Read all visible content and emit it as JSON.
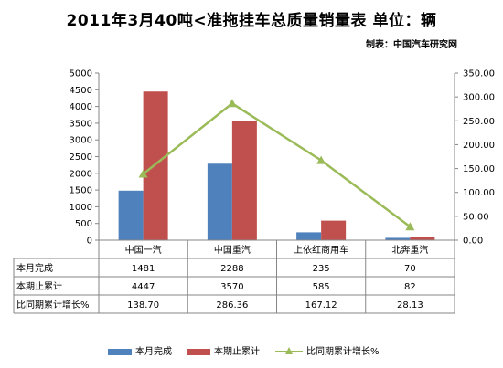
{
  "title": "2011年3月40吨<准拖挂车总质量销量表   单位：辆",
  "source": "制表：中国汽车研究网",
  "chart_data": {
    "type": "bar",
    "categories": [
      "中国一汽",
      "中国重汽",
      "上依红商用车",
      "北奔重汽"
    ],
    "series": [
      {
        "name": "本月完成",
        "type": "bar",
        "axis": "left",
        "color": "#4f81bd",
        "values": [
          1481,
          2288,
          235,
          70
        ],
        "labels": [
          "1481",
          "2288",
          "235",
          "70"
        ]
      },
      {
        "name": "本期止累计",
        "type": "bar",
        "axis": "left",
        "color": "#c0504d",
        "values": [
          4447,
          3570,
          585,
          82
        ],
        "labels": [
          "4447",
          "3570",
          "585",
          "82"
        ]
      },
      {
        "name": "比同期累计增长%",
        "type": "line",
        "axis": "right",
        "color": "#9bbb59",
        "values": [
          138.7,
          286.36,
          167.12,
          28.13
        ],
        "labels": [
          "138.70",
          "286.36",
          "167.12",
          "28.13"
        ]
      }
    ],
    "y_left": {
      "ylim": [
        0,
        5000
      ],
      "ticks": [
        "0",
        "500",
        "1000",
        "1500",
        "2000",
        "2500",
        "3000",
        "3500",
        "4000",
        "4500",
        "5000"
      ]
    },
    "y_right": {
      "ylim": [
        0,
        350
      ],
      "ticks": [
        "0.00",
        "50.00",
        "100.00",
        "150.00",
        "200.00",
        "250.00",
        "300.00",
        "350.00"
      ]
    },
    "legend_position": "bottom",
    "data_table": true,
    "grid": false
  }
}
